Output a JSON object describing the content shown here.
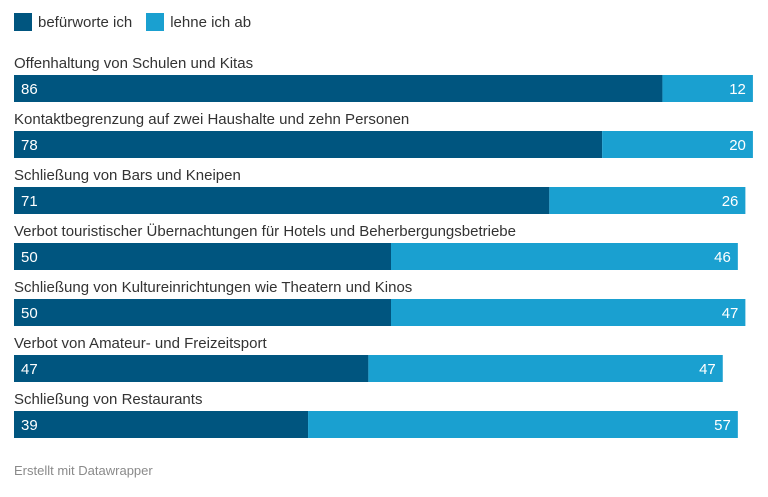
{
  "legend": [
    {
      "label": "befürworte ich",
      "color": "#00557f"
    },
    {
      "label": "lehne ich ab",
      "color": "#1aa0d0"
    }
  ],
  "footer": "Erstellt mit Datawrapper",
  "chart_data": {
    "type": "bar",
    "orientation": "horizontal",
    "stacked": true,
    "categories": [
      "Offenhaltung von Schulen und Kitas",
      "Kontaktbegrenzung auf zwei Haushalte und zehn Personen",
      "Schließung von Bars und Kneipen",
      "Verbot touristischer Übernachtungen für Hotels und Beherbergungsbetriebe",
      "Schließung von Kultureinrichtungen wie Theatern und Kinos",
      "Verbot von Amateur- und Freizeitsport",
      "Schließung von Restaurants"
    ],
    "series": [
      {
        "name": "befürworte ich",
        "color": "#00557f",
        "values": [
          86,
          78,
          71,
          50,
          50,
          47,
          39
        ]
      },
      {
        "name": "lehne ich ab",
        "color": "#1aa0d0",
        "values": [
          12,
          20,
          26,
          46,
          47,
          47,
          57
        ]
      }
    ],
    "xlim": [
      0,
      100
    ]
  }
}
